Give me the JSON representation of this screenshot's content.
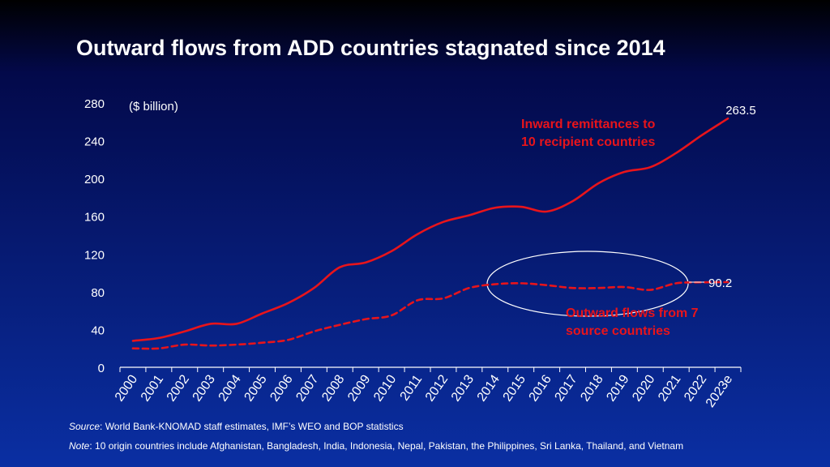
{
  "title": "Outward flows from ADD countries stagnated since 2014",
  "chart_data": {
    "type": "line",
    "categories": [
      "2000",
      "2001",
      "2002",
      "2003",
      "2004",
      "2005",
      "2006",
      "2007",
      "2008",
      "2009",
      "2010",
      "2011",
      "2012",
      "2013",
      "2014",
      "2015",
      "2016",
      "2017",
      "2018",
      "2019",
      "2020",
      "2021",
      "2022",
      "2023e"
    ],
    "unit_label": "($ billion)",
    "ylim": [
      0,
      280
    ],
    "yticks": [
      0,
      40,
      80,
      120,
      160,
      200,
      240,
      280
    ],
    "series": [
      {
        "name": "Inward remittances to 10 recipient countries",
        "label_lines": [
          "Inward remittances to",
          "10 recipient countries"
        ],
        "style": "solid",
        "color": "#e8141b",
        "values": [
          28,
          31,
          38,
          46,
          46,
          57,
          68,
          84,
          106,
          111,
          123,
          141,
          154,
          161,
          169,
          170,
          165,
          176,
          195,
          207,
          212,
          227,
          246,
          263.5
        ],
        "end_label": "263.5"
      },
      {
        "name": "Outward flows from 7 source countries",
        "label_lines": [
          "Outward flows from 7",
          "source countries"
        ],
        "style": "dashed",
        "color": "#e8141b",
        "values": [
          20,
          20,
          24,
          23,
          24,
          26,
          29,
          38,
          45,
          51,
          55,
          71,
          73,
          84,
          88,
          89,
          87,
          84,
          84,
          85,
          82,
          89,
          90,
          90.2
        ],
        "end_label": "90.2"
      }
    ],
    "annotation": "ellipse around 2014–2022 outward flows"
  },
  "source_label": "Source",
  "source_text": ": World Bank-KNOMAD staff estimates, IMF’s WEO and BOP statistics",
  "note_label": "Note",
  "note_text": ": 10 origin countries include Afghanistan, Bangladesh, India, Indonesia, Nepal, Pakistan, the Philippines, Sri Lanka, Thailand, and Vietnam"
}
